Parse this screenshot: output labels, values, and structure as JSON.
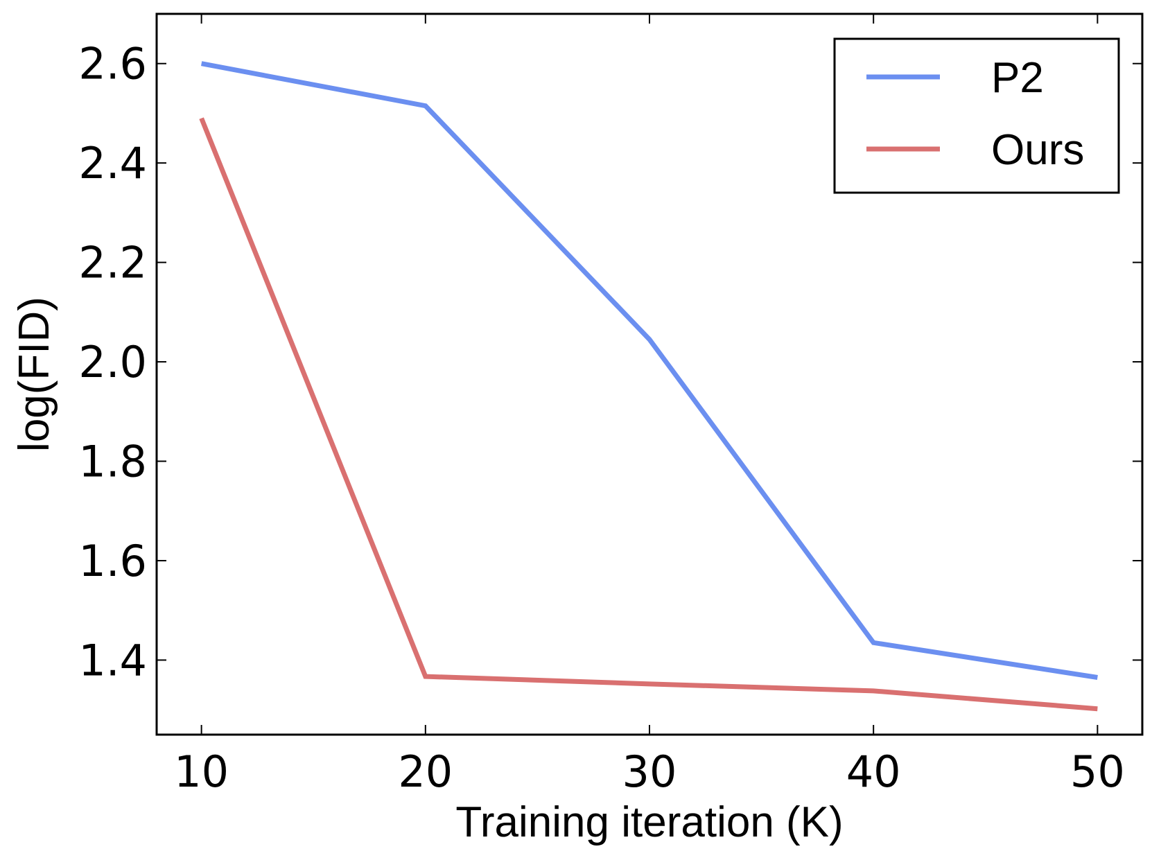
{
  "chart_data": {
    "type": "line",
    "title": "",
    "xlabel": "Training iteration (K)",
    "ylabel": "log(FID)",
    "x": [
      10,
      20,
      30,
      40,
      50
    ],
    "xlim": [
      8,
      52
    ],
    "ylim": [
      1.25,
      2.7
    ],
    "x_ticks": [
      "10",
      "20",
      "30",
      "40",
      "50"
    ],
    "y_ticks": [
      "1.4",
      "1.6",
      "1.8",
      "2.0",
      "2.2",
      "2.4",
      "2.6"
    ],
    "grid": false,
    "legend_position": "top-right",
    "series": [
      {
        "name": "P2",
        "color": "#6b8ff0",
        "values": [
          2.6,
          2.515,
          2.045,
          1.435,
          1.365
        ]
      },
      {
        "name": "Ours",
        "color": "#d97070",
        "values": [
          2.49,
          1.367,
          1.352,
          1.338,
          1.302
        ]
      }
    ]
  }
}
